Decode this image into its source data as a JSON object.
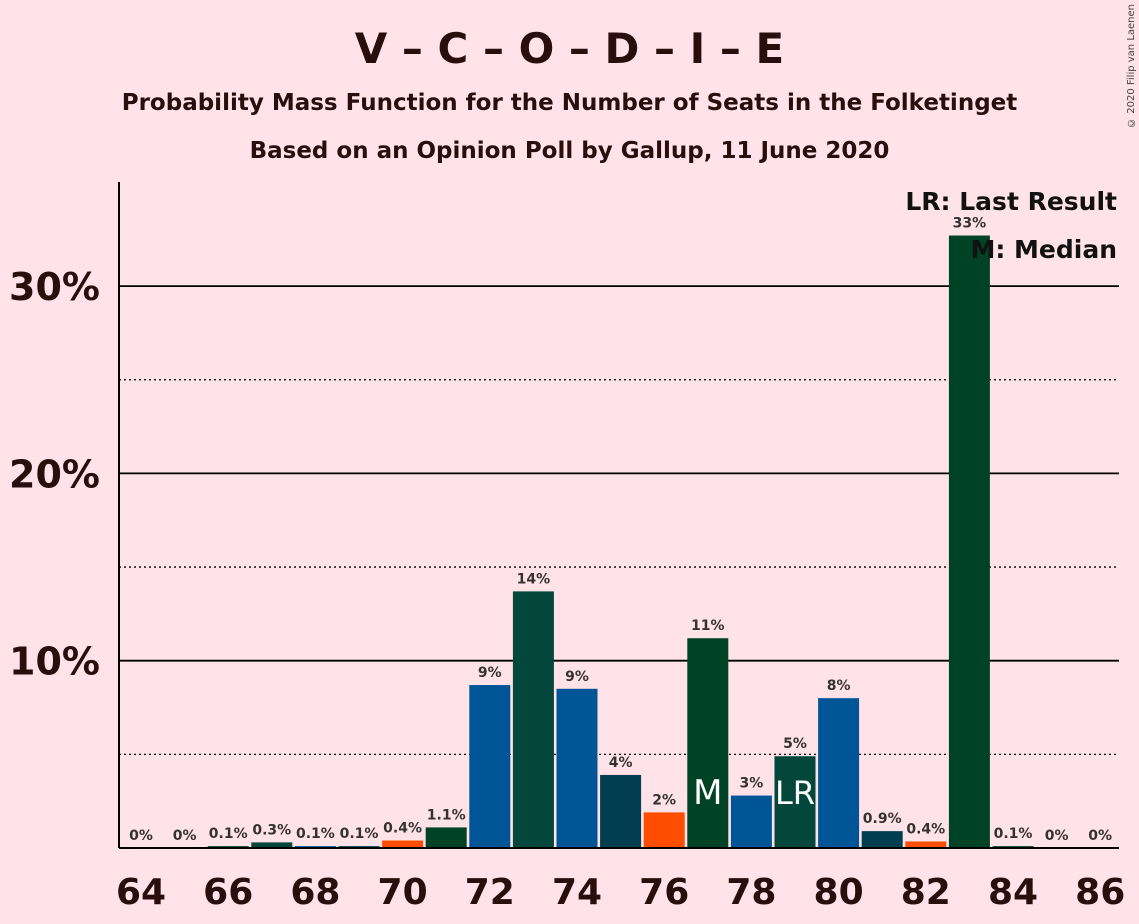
{
  "copyright": "© 2020 Filip van Laenen",
  "chart_data": {
    "type": "bar",
    "title": "V – C – O – D – I – E",
    "subtitle": "Probability Mass Function for the Number of Seats in the Folketinget",
    "subtitle2": "Based on an Opinion Poll by Gallup, 11 June 2020",
    "xlabel": "",
    "ylabel": "",
    "ylim": [
      0,
      35
    ],
    "y_ticks": [
      {
        "value": 10,
        "label": "10%"
      },
      {
        "value": 20,
        "label": "20%"
      },
      {
        "value": 30,
        "label": "30%"
      }
    ],
    "x_tick_labels": [
      "64",
      "66",
      "68",
      "70",
      "72",
      "74",
      "76",
      "78",
      "80",
      "82",
      "84",
      "86"
    ],
    "x_tick_values": [
      64,
      66,
      68,
      70,
      72,
      74,
      76,
      78,
      80,
      82,
      84,
      86
    ],
    "grid": "solid lines at 10% steps, dotted lines at intermediate 5% steps",
    "legend": {
      "position": "top-right",
      "lines": [
        "LR: Last Result",
        "M: Median"
      ]
    },
    "colors": {
      "background": "#ffe3e8",
      "dark_green": "#004225",
      "teal_green": "#02473a",
      "blue": "#005596",
      "dark_teal": "#003e50",
      "orange": "#ff4d00"
    },
    "bars": [
      {
        "seats": 64,
        "value": 0,
        "label": "0%",
        "color": "#004225"
      },
      {
        "seats": 65,
        "value": 0,
        "label": "0%",
        "color": "#004225"
      },
      {
        "seats": 66,
        "value": 0.1,
        "label": "0.1%",
        "color": "#004225"
      },
      {
        "seats": 67,
        "value": 0.3,
        "label": "0.3%",
        "color": "#02473a"
      },
      {
        "seats": 68,
        "value": 0.1,
        "label": "0.1%",
        "color": "#005596"
      },
      {
        "seats": 69,
        "value": 0.1,
        "label": "0.1%",
        "color": "#003e50"
      },
      {
        "seats": 70,
        "value": 0.4,
        "label": "0.4%",
        "color": "#ff4d00"
      },
      {
        "seats": 71,
        "value": 1.1,
        "label": "1.1%",
        "color": "#004225"
      },
      {
        "seats": 72,
        "value": 8.7,
        "label": "9%",
        "color": "#005596"
      },
      {
        "seats": 73,
        "value": 13.7,
        "label": "14%",
        "color": "#02473a"
      },
      {
        "seats": 74,
        "value": 8.5,
        "label": "9%",
        "color": "#005596"
      },
      {
        "seats": 75,
        "value": 3.9,
        "label": "4%",
        "color": "#003e50"
      },
      {
        "seats": 76,
        "value": 1.9,
        "label": "2%",
        "color": "#ff4d00"
      },
      {
        "seats": 77,
        "value": 11.2,
        "label": "11%",
        "color": "#004225",
        "marker": "M"
      },
      {
        "seats": 78,
        "value": 2.8,
        "label": "3%",
        "color": "#005596"
      },
      {
        "seats": 79,
        "value": 4.9,
        "label": "5%",
        "color": "#02473a",
        "marker": "LR"
      },
      {
        "seats": 80,
        "value": 8.0,
        "label": "8%",
        "color": "#005596"
      },
      {
        "seats": 81,
        "value": 0.9,
        "label": "0.9%",
        "color": "#003e50"
      },
      {
        "seats": 82,
        "value": 0.35,
        "label": "0.4%",
        "color": "#ff4d00"
      },
      {
        "seats": 83,
        "value": 32.7,
        "label": "33%",
        "color": "#004225"
      },
      {
        "seats": 84,
        "value": 0.1,
        "label": "0.1%",
        "color": "#004225"
      },
      {
        "seats": 85,
        "value": 0,
        "label": "0%",
        "color": "#004225"
      },
      {
        "seats": 86,
        "value": 0,
        "label": "0%",
        "color": "#004225"
      }
    ]
  }
}
